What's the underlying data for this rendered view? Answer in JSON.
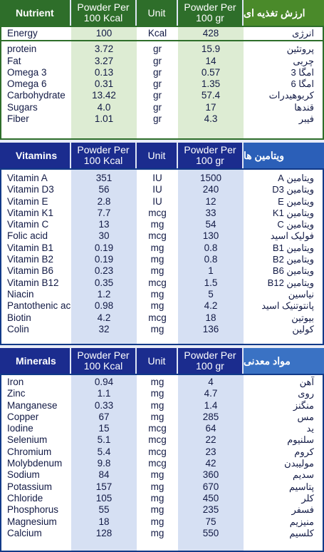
{
  "nutrients": {
    "header": {
      "label": "Nutrient",
      "per_kcal": "Powder Per\n100 Kcal",
      "unit": "Unit",
      "per_100g": "Powder Per\n100 gr",
      "label_fa": "ارزش تغذیه ای"
    },
    "energy": {
      "name": "Energy",
      "kcal": "100",
      "unit": "Kcal",
      "g100": "428",
      "fa": "انرژی"
    },
    "rows": [
      {
        "name": "protein",
        "kcal": "3.72",
        "unit": "gr",
        "g100": "15.9",
        "fa": "پروتئین"
      },
      {
        "name": "Fat",
        "kcal": "3.27",
        "unit": "gr",
        "g100": "14",
        "fa": "چربی"
      },
      {
        "name": "Omega 3",
        "kcal": "0.13",
        "unit": "gr",
        "g100": "0.57",
        "fa": "امگا 3"
      },
      {
        "name": "Omega 6",
        "kcal": "0.31",
        "unit": "gr",
        "g100": "1.35",
        "fa": "امگا 6"
      },
      {
        "name": "Carbohydrate",
        "kcal": "13.42",
        "unit": "gr",
        "g100": "57.4",
        "fa": "کربوهیدرات"
      },
      {
        "name": "Sugars",
        "kcal": "4.0",
        "unit": "gr",
        "g100": "17",
        "fa": "قندها"
      },
      {
        "name": "Fiber",
        "kcal": "1.01",
        "unit": "gr",
        "g100": "4.3",
        "fa": "فیبر"
      }
    ]
  },
  "vitamins": {
    "header": {
      "label": "Vitamins",
      "per_kcal": "Powder Per\n100 Kcal",
      "unit": "Unit",
      "per_100g": "Powder Per\n100 gr",
      "label_fa": "ویتامین ها"
    },
    "rows": [
      {
        "name": "Vitamin A",
        "kcal": "351",
        "unit": "IU",
        "g100": "1500",
        "fa": "ویتامین A"
      },
      {
        "name": "Vitamin D3",
        "kcal": "56",
        "unit": "IU",
        "g100": "240",
        "fa": "ویتامین D3"
      },
      {
        "name": "Vitamin E",
        "kcal": "2.8",
        "unit": "IU",
        "g100": "12",
        "fa": "ویتامین E"
      },
      {
        "name": "Vitamin K1",
        "kcal": "7.7",
        "unit": "mcg",
        "g100": "33",
        "fa": "ویتامین K1"
      },
      {
        "name": "Vitamin C",
        "kcal": "13",
        "unit": "mg",
        "g100": "54",
        "fa": "ویتامین C"
      },
      {
        "name": "Folic acid",
        "kcal": "30",
        "unit": "mcg",
        "g100": "130",
        "fa": "فولیک اسید"
      },
      {
        "name": "Vitamin B1",
        "kcal": "0.19",
        "unit": "mg",
        "g100": "0.8",
        "fa": "ویتامین B1"
      },
      {
        "name": "Vitamin B2",
        "kcal": "0.19",
        "unit": "mg",
        "g100": "0.8",
        "fa": "ویتامین B2"
      },
      {
        "name": "Vitamin B6",
        "kcal": "0.23",
        "unit": "mg",
        "g100": "1",
        "fa": "ویتامین B6"
      },
      {
        "name": "Vitamin B12",
        "kcal": "0.35",
        "unit": "mcg",
        "g100": "1.5",
        "fa": "ویتامین B12"
      },
      {
        "name": "Niacin",
        "kcal": "1.2",
        "unit": "mg",
        "g100": "5",
        "fa": "نیاسین"
      },
      {
        "name": "Pantothenic acid",
        "kcal": "0.98",
        "unit": "mg",
        "g100": "4.2",
        "fa": "پانتوتنیک اسید"
      },
      {
        "name": "Biotin",
        "kcal": "4.2",
        "unit": "mcg",
        "g100": "18",
        "fa": "بیوتین"
      },
      {
        "name": "Colin",
        "kcal": "32",
        "unit": "mg",
        "g100": "136",
        "fa": "کولین"
      }
    ]
  },
  "minerals": {
    "header": {
      "label": "Minerals",
      "per_kcal": "Powder Per\n100 Kcal",
      "unit": "Unit",
      "per_100g": "Powder Per\n100 gr",
      "label_fa": "مواد معدنی"
    },
    "rows": [
      {
        "name": "Iron",
        "kcal": "0.94",
        "unit": "mg",
        "g100": "4",
        "fa": "آهن"
      },
      {
        "name": "Zinc",
        "kcal": "1.1",
        "unit": "mg",
        "g100": "4.7",
        "fa": "روی"
      },
      {
        "name": "Manganese",
        "kcal": "0.33",
        "unit": "mg",
        "g100": "1.4",
        "fa": "منگنز"
      },
      {
        "name": "Copper",
        "kcal": "67",
        "unit": "mg",
        "g100": "285",
        "fa": "مس"
      },
      {
        "name": "Iodine",
        "kcal": "15",
        "unit": "mcg",
        "g100": "64",
        "fa": "ید"
      },
      {
        "name": "Selenium",
        "kcal": "5.1",
        "unit": "mcg",
        "g100": "22",
        "fa": "سلنیوم"
      },
      {
        "name": "Chromium",
        "kcal": "5.4",
        "unit": "mcg",
        "g100": "23",
        "fa": "کروم"
      },
      {
        "name": "Molybdenum",
        "kcal": "9.8",
        "unit": "mcg",
        "g100": "42",
        "fa": "مولیبدن"
      },
      {
        "name": "Sodium",
        "kcal": "84",
        "unit": "mg",
        "g100": "360",
        "fa": "سدیم"
      },
      {
        "name": "Potassium",
        "kcal": "157",
        "unit": "mg",
        "g100": "670",
        "fa": "پتاسیم"
      },
      {
        "name": "Chloride",
        "kcal": "105",
        "unit": "mg",
        "g100": "450",
        "fa": "کلر"
      },
      {
        "name": "Phosphorus",
        "kcal": "55",
        "unit": "mg",
        "g100": "235",
        "fa": "فسفر"
      },
      {
        "name": "Magnesium",
        "kcal": "18",
        "unit": "mg",
        "g100": "75",
        "fa": "منیزیم"
      },
      {
        "name": "Calcium",
        "kcal": "128",
        "unit": "mg",
        "g100": "550",
        "fa": "کلسیم"
      }
    ]
  }
}
